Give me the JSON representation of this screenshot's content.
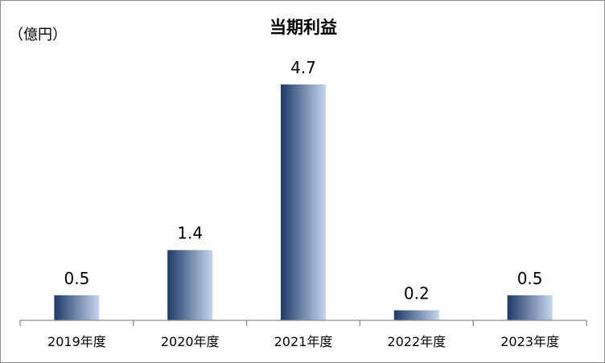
{
  "chart_data": {
    "type": "bar",
    "title": "当期利益",
    "unit_label": "（億円）",
    "categories": [
      "2019年度",
      "2020年度",
      "2021年度",
      "2022年度",
      "2023年度"
    ],
    "values": [
      0.5,
      1.4,
      4.7,
      0.2,
      0.5
    ],
    "data_labels": [
      "0.5",
      "1.4",
      "4.7",
      "0.2",
      "0.5"
    ],
    "ylim": [
      0,
      5.1
    ],
    "grid": false,
    "legend": "none",
    "bar_gradient": [
      "#1f3a68",
      "#c5d5ee"
    ]
  }
}
